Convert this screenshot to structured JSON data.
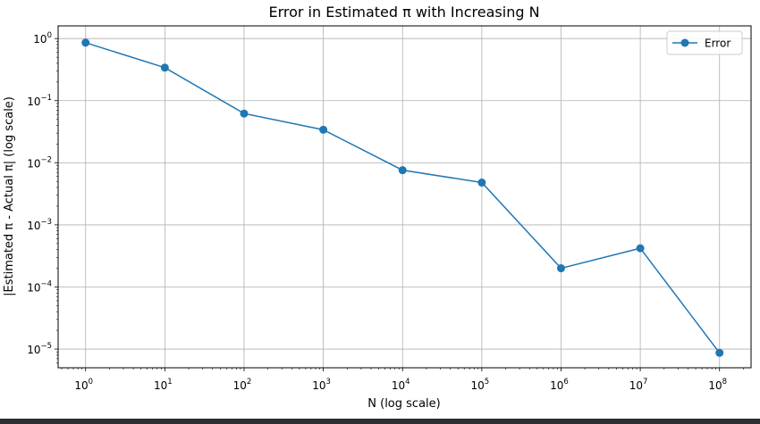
{
  "chart_data": {
    "type": "line",
    "title": "Error in Estimated π with Increasing N",
    "xlabel": "N (log scale)",
    "ylabel": "|Estimated π - Actual π| (log scale)",
    "xscale": "log",
    "yscale": "log",
    "xlim": [
      0.45,
      250000000.0
    ],
    "ylim": [
      5e-06,
      1.6
    ],
    "grid": true,
    "legend_position": "top-right",
    "x_ticks": [
      {
        "value": 1,
        "base": "10",
        "exp": "0"
      },
      {
        "value": 10,
        "base": "10",
        "exp": "1"
      },
      {
        "value": 100,
        "base": "10",
        "exp": "2"
      },
      {
        "value": 1000,
        "base": "10",
        "exp": "3"
      },
      {
        "value": 10000,
        "base": "10",
        "exp": "4"
      },
      {
        "value": 100000,
        "base": "10",
        "exp": "5"
      },
      {
        "value": 1000000,
        "base": "10",
        "exp": "6"
      },
      {
        "value": 10000000,
        "base": "10",
        "exp": "7"
      },
      {
        "value": 100000000,
        "base": "10",
        "exp": "8"
      }
    ],
    "y_ticks": [
      {
        "value": 1,
        "base": "10",
        "exp": "0"
      },
      {
        "value": 0.1,
        "base": "10",
        "exp": "−1"
      },
      {
        "value": 0.01,
        "base": "10",
        "exp": "−2"
      },
      {
        "value": 0.001,
        "base": "10",
        "exp": "−3"
      },
      {
        "value": 0.0001,
        "base": "10",
        "exp": "−4"
      },
      {
        "value": 1e-05,
        "base": "10",
        "exp": "−5"
      }
    ],
    "series": [
      {
        "name": "Error",
        "color": "#1f77b4",
        "marker": "circle",
        "x": [
          1,
          10,
          100,
          1000,
          10000,
          100000,
          1000000,
          10000000,
          100000000
        ],
        "y": [
          0.86,
          0.34,
          0.062,
          0.034,
          0.0076,
          0.0048,
          0.0002,
          0.00042,
          8.7e-06
        ]
      }
    ]
  }
}
